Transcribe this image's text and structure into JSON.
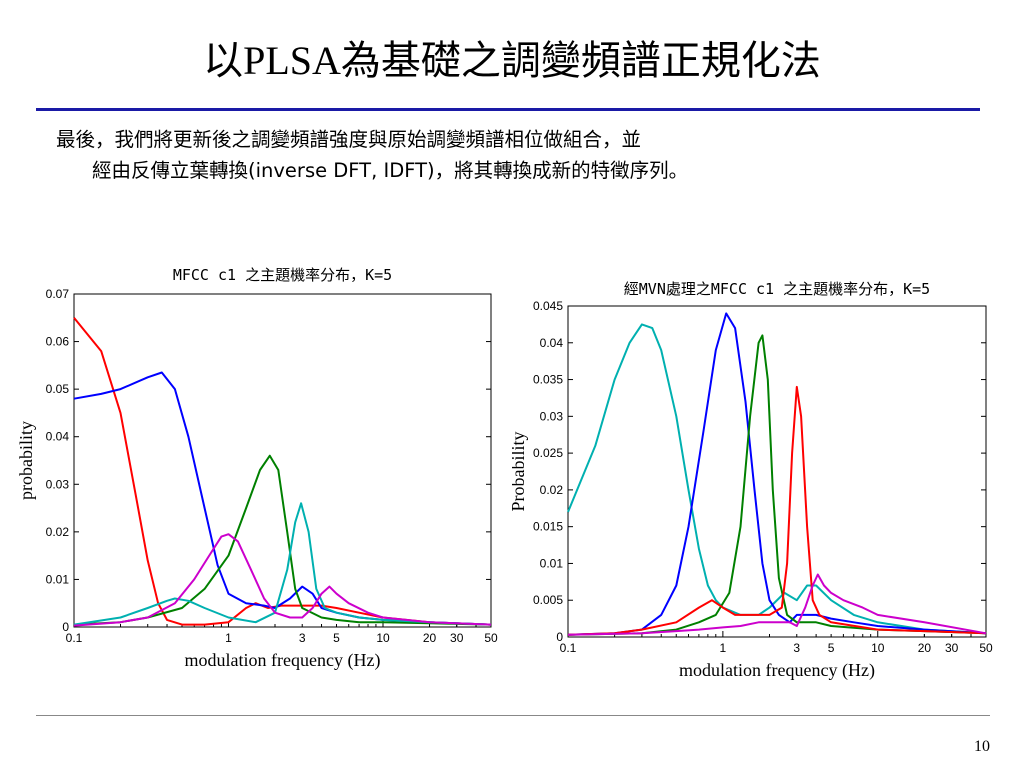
{
  "slide": {
    "title": "以PLSA為基礎之調變頻譜正規化法",
    "body_line1": "最後，我們將更新後之調變頻譜強度與原始調變頻譜相位做組合，並",
    "body_line2": "經由反傳立葉轉換(inverse DFT, IDFT)，將其轉換成新的特徵序列。",
    "page_number": "10"
  },
  "chart_data": [
    {
      "type": "line",
      "title": "MFCC c1 之主題機率分布，K=5",
      "xlabel": "modulation frequency (Hz)",
      "ylabel": "probability",
      "xscale": "log",
      "xlim": [
        0.1,
        50
      ],
      "ylim": [
        0,
        0.07
      ],
      "xticks": [
        0.1,
        1,
        3,
        5,
        10,
        20,
        30,
        50
      ],
      "xtick_labels": [
        "0.1",
        "1",
        "3",
        "5",
        "10",
        "20",
        "30",
        "50"
      ],
      "yticks": [
        0,
        0.01,
        0.02,
        0.03,
        0.04,
        0.05,
        0.06,
        0.07
      ],
      "ytick_labels": [
        "0",
        "0.01",
        "0.02",
        "0.03",
        "0.04",
        "0.05",
        "0.06",
        "0.07"
      ],
      "series": [
        {
          "color": "#ff0000",
          "points": [
            [
              0.1,
              0.065
            ],
            [
              0.15,
              0.058
            ],
            [
              0.2,
              0.045
            ],
            [
              0.25,
              0.028
            ],
            [
              0.3,
              0.014
            ],
            [
              0.35,
              0.005
            ],
            [
              0.4,
              0.0015
            ],
            [
              0.5,
              0.0005
            ],
            [
              0.7,
              0.0005
            ],
            [
              1.0,
              0.001
            ],
            [
              1.3,
              0.004
            ],
            [
              1.5,
              0.005
            ],
            [
              1.8,
              0.004
            ],
            [
              2.2,
              0.0045
            ],
            [
              3.0,
              0.0045
            ],
            [
              4.0,
              0.0045
            ],
            [
              5.0,
              0.004
            ],
            [
              7.0,
              0.003
            ],
            [
              10,
              0.002
            ],
            [
              20,
              0.001
            ],
            [
              50,
              0.0005
            ]
          ]
        },
        {
          "color": "#0000ff",
          "points": [
            [
              0.1,
              0.048
            ],
            [
              0.15,
              0.049
            ],
            [
              0.2,
              0.05
            ],
            [
              0.3,
              0.0525
            ],
            [
              0.37,
              0.0535
            ],
            [
              0.45,
              0.05
            ],
            [
              0.55,
              0.04
            ],
            [
              0.7,
              0.025
            ],
            [
              0.85,
              0.013
            ],
            [
              1.0,
              0.007
            ],
            [
              1.3,
              0.005
            ],
            [
              1.7,
              0.0045
            ],
            [
              2.0,
              0.004
            ],
            [
              2.5,
              0.006
            ],
            [
              3.0,
              0.0085
            ],
            [
              3.5,
              0.007
            ],
            [
              4.0,
              0.004
            ],
            [
              5.0,
              0.003
            ],
            [
              7.0,
              0.002
            ],
            [
              10,
              0.0015
            ],
            [
              20,
              0.001
            ],
            [
              50,
              0.0005
            ]
          ]
        },
        {
          "color": "#008000",
          "points": [
            [
              0.1,
              0.0005
            ],
            [
              0.2,
              0.001
            ],
            [
              0.3,
              0.002
            ],
            [
              0.5,
              0.004
            ],
            [
              0.7,
              0.008
            ],
            [
              1.0,
              0.015
            ],
            [
              1.3,
              0.025
            ],
            [
              1.6,
              0.033
            ],
            [
              1.85,
              0.036
            ],
            [
              2.1,
              0.033
            ],
            [
              2.4,
              0.02
            ],
            [
              2.7,
              0.008
            ],
            [
              3.0,
              0.004
            ],
            [
              4.0,
              0.002
            ],
            [
              5.0,
              0.0015
            ],
            [
              7.0,
              0.001
            ],
            [
              10,
              0.001
            ],
            [
              20,
              0.0008
            ],
            [
              50,
              0.0005
            ]
          ]
        },
        {
          "color": "#00b0b0",
          "points": [
            [
              0.1,
              0.0005
            ],
            [
              0.2,
              0.002
            ],
            [
              0.3,
              0.004
            ],
            [
              0.4,
              0.0055
            ],
            [
              0.45,
              0.006
            ],
            [
              0.55,
              0.0055
            ],
            [
              0.7,
              0.004
            ],
            [
              1.0,
              0.002
            ],
            [
              1.5,
              0.001
            ],
            [
              2.0,
              0.003
            ],
            [
              2.4,
              0.012
            ],
            [
              2.7,
              0.022
            ],
            [
              2.95,
              0.026
            ],
            [
              3.3,
              0.02
            ],
            [
              3.7,
              0.008
            ],
            [
              4.2,
              0.004
            ],
            [
              5.0,
              0.003
            ],
            [
              7.0,
              0.002
            ],
            [
              10,
              0.0015
            ],
            [
              20,
              0.001
            ],
            [
              50,
              0.0005
            ]
          ]
        },
        {
          "color": "#cc00cc",
          "points": [
            [
              0.1,
              0.0003
            ],
            [
              0.2,
              0.001
            ],
            [
              0.3,
              0.002
            ],
            [
              0.45,
              0.005
            ],
            [
              0.6,
              0.01
            ],
            [
              0.75,
              0.015
            ],
            [
              0.9,
              0.019
            ],
            [
              1.0,
              0.0195
            ],
            [
              1.15,
              0.018
            ],
            [
              1.4,
              0.012
            ],
            [
              1.7,
              0.006
            ],
            [
              2.0,
              0.003
            ],
            [
              2.5,
              0.002
            ],
            [
              3.0,
              0.002
            ],
            [
              3.5,
              0.004
            ],
            [
              4.0,
              0.007
            ],
            [
              4.5,
              0.0085
            ],
            [
              5.0,
              0.007
            ],
            [
              6.0,
              0.005
            ],
            [
              8.0,
              0.003
            ],
            [
              10,
              0.002
            ],
            [
              20,
              0.001
            ],
            [
              50,
              0.0005
            ]
          ]
        }
      ]
    },
    {
      "type": "line",
      "title": "經MVN處理之MFCC c1 之主題機率分布，K=5",
      "xlabel": "modulation frequency (Hz)",
      "ylabel": "Probability",
      "xscale": "log",
      "xlim": [
        0.1,
        50
      ],
      "ylim": [
        0,
        0.045
      ],
      "xticks": [
        0.1,
        1,
        3,
        5,
        10,
        20,
        30,
        50
      ],
      "xtick_labels": [
        "0.1",
        "1",
        "3",
        "5",
        "10",
        "20",
        "30",
        "50"
      ],
      "yticks": [
        0,
        0.005,
        0.01,
        0.015,
        0.02,
        0.025,
        0.03,
        0.035,
        0.04,
        0.045
      ],
      "ytick_labels": [
        "0",
        "0.005",
        "0.01",
        "0.015",
        "0.02",
        "0.025",
        "0.03",
        "0.035",
        "0.04",
        "0.045"
      ],
      "series": [
        {
          "color": "#00b0b0",
          "points": [
            [
              0.1,
              0.017
            ],
            [
              0.15,
              0.026
            ],
            [
              0.2,
              0.035
            ],
            [
              0.25,
              0.04
            ],
            [
              0.3,
              0.0425
            ],
            [
              0.35,
              0.042
            ],
            [
              0.4,
              0.039
            ],
            [
              0.5,
              0.03
            ],
            [
              0.6,
              0.02
            ],
            [
              0.7,
              0.012
            ],
            [
              0.8,
              0.007
            ],
            [
              0.9,
              0.005
            ],
            [
              1.0,
              0.004
            ],
            [
              1.3,
              0.003
            ],
            [
              1.7,
              0.003
            ],
            [
              2.0,
              0.004
            ],
            [
              2.5,
              0.006
            ],
            [
              3.0,
              0.005
            ],
            [
              3.5,
              0.007
            ],
            [
              4.0,
              0.007
            ],
            [
              5.0,
              0.005
            ],
            [
              7.0,
              0.003
            ],
            [
              10,
              0.002
            ],
            [
              20,
              0.001
            ],
            [
              50,
              0.0005
            ]
          ]
        },
        {
          "color": "#0000ff",
          "points": [
            [
              0.1,
              0.0003
            ],
            [
              0.2,
              0.0005
            ],
            [
              0.3,
              0.001
            ],
            [
              0.4,
              0.003
            ],
            [
              0.5,
              0.007
            ],
            [
              0.6,
              0.015
            ],
            [
              0.75,
              0.028
            ],
            [
              0.9,
              0.039
            ],
            [
              1.05,
              0.044
            ],
            [
              1.2,
              0.042
            ],
            [
              1.4,
              0.032
            ],
            [
              1.6,
              0.02
            ],
            [
              1.8,
              0.01
            ],
            [
              2.0,
              0.005
            ],
            [
              2.3,
              0.003
            ],
            [
              2.7,
              0.002
            ],
            [
              3.0,
              0.003
            ],
            [
              4.0,
              0.003
            ],
            [
              5.0,
              0.0025
            ],
            [
              7.0,
              0.002
            ],
            [
              10,
              0.0015
            ],
            [
              20,
              0.001
            ],
            [
              50,
              0.0005
            ]
          ]
        },
        {
          "color": "#008000",
          "points": [
            [
              0.1,
              0.0003
            ],
            [
              0.3,
              0.0005
            ],
            [
              0.5,
              0.001
            ],
            [
              0.7,
              0.002
            ],
            [
              0.9,
              0.003
            ],
            [
              1.1,
              0.006
            ],
            [
              1.3,
              0.015
            ],
            [
              1.5,
              0.03
            ],
            [
              1.7,
              0.04
            ],
            [
              1.8,
              0.041
            ],
            [
              1.95,
              0.035
            ],
            [
              2.1,
              0.02
            ],
            [
              2.3,
              0.008
            ],
            [
              2.6,
              0.003
            ],
            [
              3.0,
              0.002
            ],
            [
              4.0,
              0.002
            ],
            [
              5.0,
              0.0015
            ],
            [
              10,
              0.001
            ],
            [
              20,
              0.0008
            ],
            [
              50,
              0.0005
            ]
          ]
        },
        {
          "color": "#ff0000",
          "points": [
            [
              0.1,
              0.0003
            ],
            [
              0.2,
              0.0005
            ],
            [
              0.3,
              0.001
            ],
            [
              0.5,
              0.002
            ],
            [
              0.7,
              0.004
            ],
            [
              0.85,
              0.005
            ],
            [
              1.0,
              0.004
            ],
            [
              1.2,
              0.003
            ],
            [
              1.5,
              0.003
            ],
            [
              2.0,
              0.003
            ],
            [
              2.4,
              0.004
            ],
            [
              2.6,
              0.01
            ],
            [
              2.8,
              0.025
            ],
            [
              3.0,
              0.034
            ],
            [
              3.2,
              0.03
            ],
            [
              3.5,
              0.015
            ],
            [
              3.8,
              0.005
            ],
            [
              4.2,
              0.003
            ],
            [
              5.0,
              0.002
            ],
            [
              10,
              0.001
            ],
            [
              20,
              0.0008
            ],
            [
              50,
              0.0005
            ]
          ]
        },
        {
          "color": "#cc00cc",
          "points": [
            [
              0.1,
              0.0003
            ],
            [
              0.3,
              0.0005
            ],
            [
              0.5,
              0.0008
            ],
            [
              0.7,
              0.001
            ],
            [
              1.0,
              0.0013
            ],
            [
              1.3,
              0.0015
            ],
            [
              1.7,
              0.002
            ],
            [
              2.2,
              0.002
            ],
            [
              2.7,
              0.002
            ],
            [
              3.0,
              0.0015
            ],
            [
              3.4,
              0.004
            ],
            [
              3.8,
              0.007
            ],
            [
              4.1,
              0.0085
            ],
            [
              4.5,
              0.007
            ],
            [
              5.0,
              0.006
            ],
            [
              6.0,
              0.005
            ],
            [
              8.0,
              0.004
            ],
            [
              10,
              0.003
            ],
            [
              20,
              0.002
            ],
            [
              50,
              0.0005
            ]
          ]
        }
      ]
    }
  ]
}
